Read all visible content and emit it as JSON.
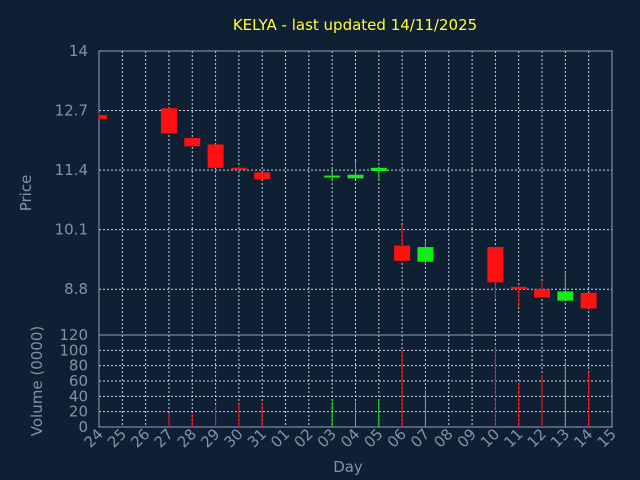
{
  "chart_data": {
    "type": "candlestick",
    "title": "KELYA - last updated 14/11/2025",
    "xlabel": "Day",
    "price_panel": {
      "ylabel": "Price",
      "ylim": [
        7.8,
        14
      ],
      "yticks": [
        8.8,
        10.1,
        11.4,
        12.7,
        14
      ]
    },
    "volume_panel": {
      "ylabel": "Volume (0000)",
      "ylim": [
        0,
        120
      ],
      "yticks": [
        0,
        20,
        40,
        60,
        80,
        100,
        120
      ]
    },
    "days": [
      "24",
      "25",
      "26",
      "27",
      "28",
      "29",
      "30",
      "31",
      "01",
      "02",
      "03",
      "04",
      "05",
      "06",
      "07",
      "08",
      "09",
      "10",
      "11",
      "12",
      "13",
      "14",
      "15"
    ],
    "candles": [
      {
        "day": "24",
        "open": 12.6,
        "high": 12.65,
        "low": 12.52,
        "close": 12.52,
        "volume": 0,
        "color": "#ff1111"
      },
      {
        "day": "27",
        "open": 12.75,
        "high": 12.75,
        "low": 12.2,
        "close": 12.2,
        "volume": 18,
        "color": "#ff1111"
      },
      {
        "day": "28",
        "open": 12.1,
        "high": 12.1,
        "low": 11.92,
        "close": 11.92,
        "volume": 17,
        "color": "#ff1111"
      },
      {
        "day": "29",
        "open": 11.96,
        "high": 11.96,
        "low": 11.45,
        "close": 11.45,
        "volume": 27,
        "color": "#ff1111"
      },
      {
        "day": "30",
        "open": 11.45,
        "high": 11.48,
        "low": 11.4,
        "close": 11.42,
        "volume": 30,
        "color": "#ff1111"
      },
      {
        "day": "31",
        "open": 11.35,
        "high": 11.35,
        "low": 11.2,
        "close": 11.2,
        "volume": 32,
        "color": "#ff1111"
      },
      {
        "day": "03",
        "open": 11.25,
        "high": 11.35,
        "low": 11.15,
        "close": 11.28,
        "volume": 33,
        "color": "#11ee11"
      },
      {
        "day": "04",
        "open": 11.22,
        "high": 11.6,
        "low": 11.2,
        "close": 11.3,
        "volume": 33,
        "color": "#11ee11"
      },
      {
        "day": "05",
        "open": 11.38,
        "high": 11.48,
        "low": 11.18,
        "close": 11.45,
        "volume": 35,
        "color": "#11ee11"
      },
      {
        "day": "06",
        "open": 9.75,
        "high": 10.2,
        "low": 9.42,
        "close": 9.42,
        "volume": 100,
        "color": "#ff1111"
      },
      {
        "day": "07",
        "open": 9.4,
        "high": 9.85,
        "low": 9.35,
        "close": 9.72,
        "volume": 48,
        "color": "#11ee11"
      },
      {
        "day": "10",
        "open": 9.72,
        "high": 9.72,
        "low": 8.6,
        "close": 8.95,
        "volume": 105,
        "color": "#ff1111"
      },
      {
        "day": "11",
        "open": 8.85,
        "high": 8.88,
        "low": 8.4,
        "close": 8.8,
        "volume": 58,
        "color": "#ff1111"
      },
      {
        "day": "12",
        "open": 8.8,
        "high": 8.95,
        "low": 8.62,
        "close": 8.62,
        "volume": 68,
        "color": "#ff1111"
      },
      {
        "day": "13",
        "open": 8.55,
        "high": 9.2,
        "low": 8.55,
        "close": 8.75,
        "volume": 85,
        "color": "#11ee11"
      },
      {
        "day": "14",
        "open": 8.72,
        "high": 8.72,
        "low": 8.38,
        "close": 8.38,
        "volume": 72,
        "color": "#ff1111"
      }
    ]
  }
}
